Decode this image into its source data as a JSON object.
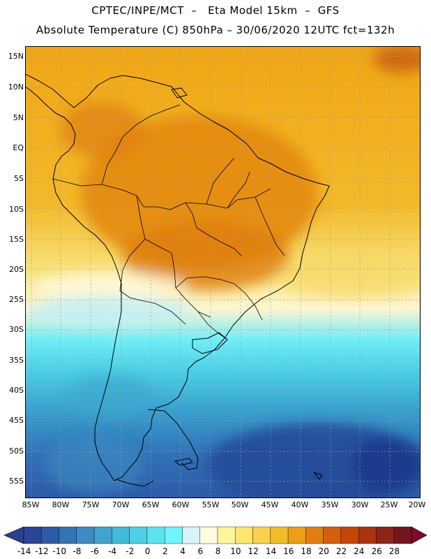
{
  "header": {
    "line1": "CPTEC/INPE/MCT  –   Eta Model 15km  –  GFS",
    "line2": "Absolute Temperature (C) 850hPa – 30/06/2020 12UTC fct=132h"
  },
  "map": {
    "lat_labels": [
      "15N",
      "10N",
      "5N",
      "EQ",
      "5S",
      "10S",
      "15S",
      "20S",
      "25S",
      "30S",
      "35S",
      "40S",
      "45S",
      "50S",
      "55S"
    ],
    "lon_labels": [
      "85W",
      "80W",
      "75W",
      "70W",
      "65W",
      "60W",
      "55W",
      "50W",
      "45W",
      "40W",
      "35W",
      "30W",
      "25W",
      "20W"
    ],
    "lat_range": [
      16,
      -58
    ],
    "lon_range": [
      -86,
      -20
    ]
  },
  "colorbar": {
    "labels": [
      "-14",
      "-12",
      "-10",
      "-8",
      "-6",
      "-4",
      "-2",
      "0",
      "2",
      "4",
      "6",
      "8",
      "10",
      "12",
      "14",
      "16",
      "18",
      "20",
      "22",
      "24",
      "26",
      "28"
    ],
    "colors": [
      "#2b4597",
      "#2c5ba7",
      "#3474b4",
      "#3d8cc3",
      "#3fa3cc",
      "#45b9d9",
      "#4fcee6",
      "#5fe2ef",
      "#6ff5fa",
      "#d8f4fb",
      "#fffbe0",
      "#fff59a",
      "#fde66e",
      "#f8d24f",
      "#f0bc2b",
      "#ec9f12",
      "#e07e12",
      "#d45f0c",
      "#c34808",
      "#a93410",
      "#8d2618",
      "#75151c"
    ],
    "under_color": "#2b3f91",
    "over_color": "#7b0c2a"
  }
}
